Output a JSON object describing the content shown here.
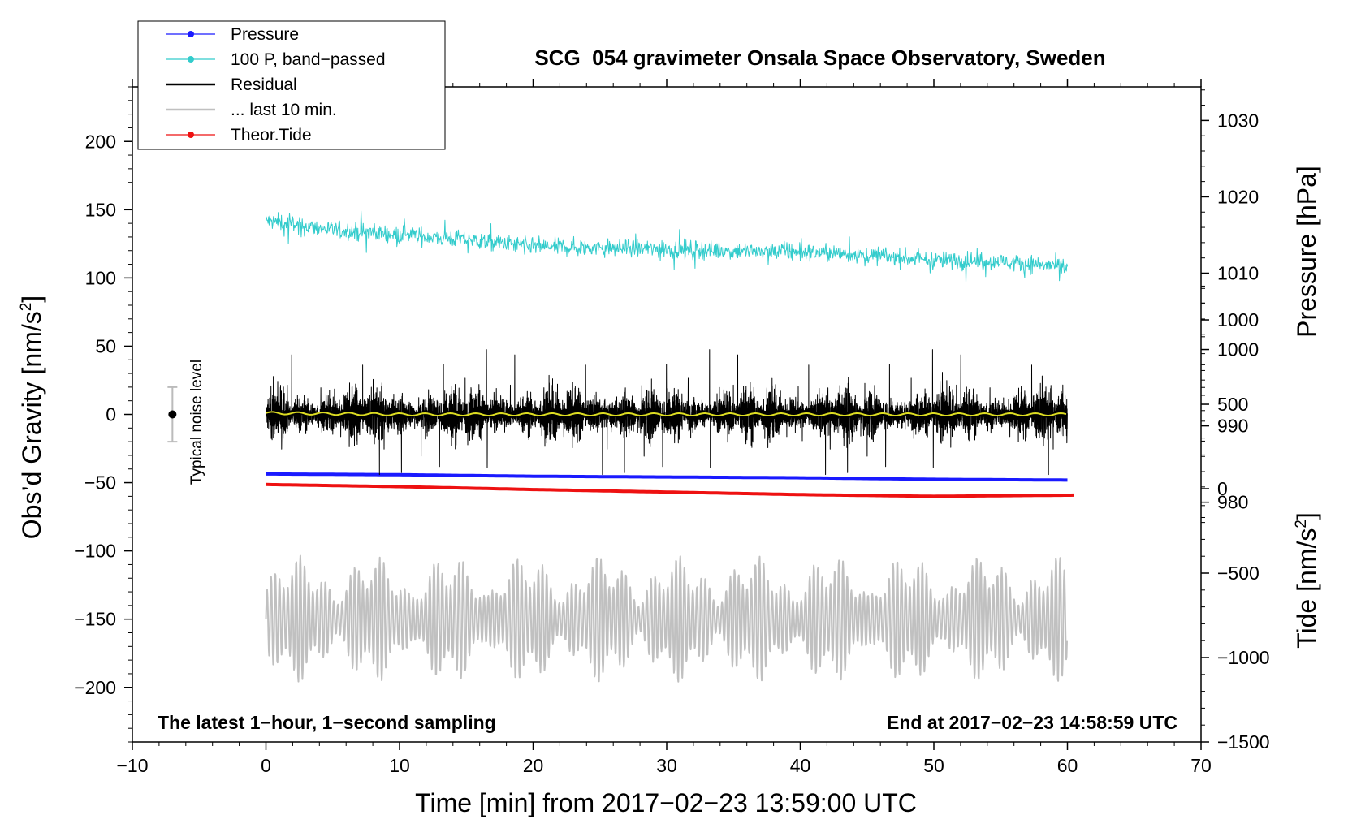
{
  "chart_data": {
    "type": "line",
    "title": "SCG_054 gravimeter Onsala Space Observatory, Sweden",
    "xlabel": "Time [min] from 2017−02−23 13:59:00 UTC",
    "ylabel_left": "Obs’d Gravity [nm/s",
    "ylabel_right_pressure": "Pressure [hPa]",
    "ylabel_right_tide": "Tide [nm/s",
    "superscript": "2",
    "closing_bracket": "]",
    "xlim": [
      -10,
      70
    ],
    "ylim_left": [
      -240,
      240
    ],
    "ylim_pressure": [
      948.6,
      1034.4
    ],
    "ylim_tide": [
      -1500,
      2380
    ],
    "x_ticks": [
      -10,
      0,
      10,
      20,
      30,
      40,
      50,
      60,
      70
    ],
    "x_tick_labels": [
      "−10",
      "0",
      "10",
      "20",
      "30",
      "40",
      "50",
      "60",
      "70"
    ],
    "y_left_ticks": [
      200,
      150,
      100,
      50,
      0,
      -50,
      -100,
      -150,
      -200
    ],
    "y_left_tick_labels": [
      "200",
      "150",
      "100",
      "50",
      "0",
      "−50",
      "−100",
      "−150",
      "−200"
    ],
    "y_pressure_ticks": [
      1030,
      1020,
      1010,
      1000,
      990,
      980
    ],
    "y_pressure_tick_labels": [
      "1030",
      "1020",
      "1010",
      "1000",
      "990",
      "980"
    ],
    "y_tide_ticks": [
      1000,
      500,
      0,
      -500,
      -1000,
      -1500
    ],
    "y_tide_tick_labels": [
      "1000",
      "500",
      "0",
      "−500",
      "−1000",
      "−1500"
    ],
    "footer_left": "The latest 1−hour, 1−second sampling",
    "footer_right": "End at 2017−02−23 14:58:59 UTC",
    "noise_label": "Typical noise level",
    "noise_bar": {
      "x": -7,
      "center": 0,
      "half_range": 20
    },
    "legend": [
      {
        "label": "Pressure",
        "color": "#1a1aff",
        "marker": true
      },
      {
        "label": "100 P, band−passed",
        "color": "#33cccc",
        "marker": true
      },
      {
        "label": "Residual",
        "color": "#000000",
        "marker": false
      },
      {
        "label": "... last 10 min.",
        "color": "#c0c0c0",
        "marker": false
      },
      {
        "label": "Theor.Tide",
        "color": "#ee1111",
        "marker": true
      }
    ],
    "series": [
      {
        "name": "Pressure",
        "axis": "pressure",
        "color": "#1a1aff",
        "x": [
          0,
          10,
          20,
          30,
          40,
          50,
          60
        ],
        "values": [
          983.7,
          983.6,
          983.4,
          983.3,
          983.2,
          983.0,
          982.9
        ]
      },
      {
        "name": "100 P, band−passed",
        "axis": "left",
        "color": "#33cccc",
        "x": [
          0,
          5,
          10,
          15,
          20,
          25,
          30,
          35,
          40,
          45,
          50,
          55,
          60
        ],
        "values": [
          142,
          135,
          132,
          128,
          123,
          122,
          121,
          120,
          119,
          117,
          113,
          112,
          108
        ]
      },
      {
        "name": "Residual",
        "axis": "left",
        "color": "#000000",
        "x": [
          0,
          60
        ],
        "values": [
          0,
          0
        ],
        "min": -58,
        "max": 64
      },
      {
        "name": "Residual smoothed",
        "axis": "left",
        "color": "#dddd22",
        "x": [
          0,
          10,
          20,
          30,
          40,
          50,
          60
        ],
        "values": [
          1,
          0,
          0,
          0,
          0,
          0,
          0
        ]
      },
      {
        "name": "... last 10 min.",
        "axis": "left",
        "color": "#c0c0c0",
        "x": [
          0,
          60
        ],
        "values": [
          -150,
          -150
        ],
        "min": -197,
        "max": -103
      },
      {
        "name": "Theor.Tide",
        "axis": "tide",
        "color": "#ee1111",
        "x": [
          0,
          10,
          20,
          30,
          40,
          50,
          60.5
        ],
        "values": [
          25,
          12,
          -5,
          -20,
          -35,
          -45,
          -38
        ]
      }
    ]
  }
}
